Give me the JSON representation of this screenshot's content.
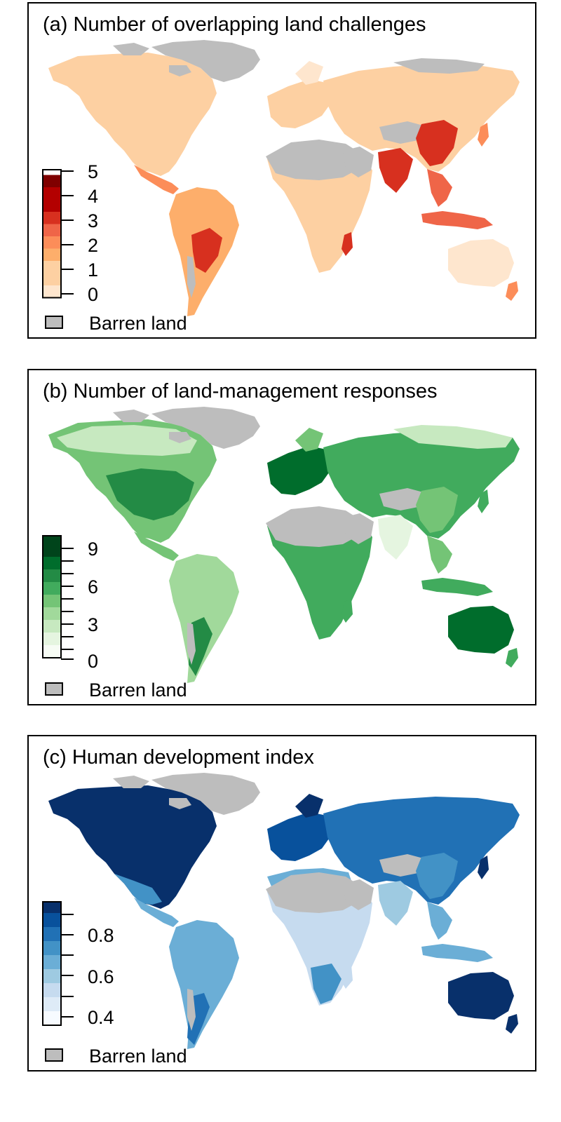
{
  "panels": [
    {
      "title": "(a) Number of overlapping land challenges",
      "legend_ticks": [
        "5",
        "4",
        "3",
        "2",
        "1",
        "0"
      ],
      "barren_label": "Barren land",
      "palette": [
        "#fee6ce",
        "#fdd0a2",
        "#fdae6b",
        "#fc8d59",
        "#ef6548",
        "#d7301f",
        "#b30000",
        "#7f0000"
      ],
      "barren_color": "#bdbdbd"
    },
    {
      "title": "(b) Number of land-management responses",
      "legend_ticks": [
        "9",
        "6",
        "3",
        "0"
      ],
      "barren_label": "Barren land",
      "palette": [
        "#f7fcf5",
        "#e5f5e0",
        "#c7e9c0",
        "#a1d99b",
        "#74c476",
        "#41ab5d",
        "#238b45",
        "#006d2c",
        "#00441b"
      ],
      "barren_color": "#bdbdbd"
    },
    {
      "title": "(c) Human development index",
      "legend_ticks": [
        "0.8",
        "0.6",
        "0.4"
      ],
      "barren_label": "Barren land",
      "palette": [
        "#f7fbff",
        "#deebf7",
        "#c6dbef",
        "#9ecae1",
        "#6baed6",
        "#4292c6",
        "#2171b5",
        "#08519c",
        "#08306b"
      ],
      "barren_color": "#bdbdbd"
    }
  ]
}
